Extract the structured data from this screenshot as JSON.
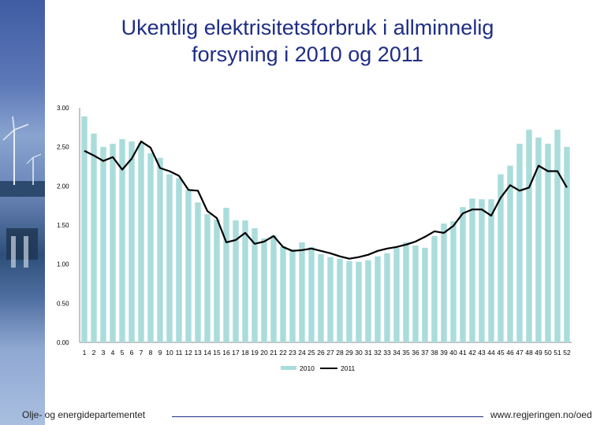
{
  "title": {
    "line1": "Ukentlig elektrisitetsforbruk i allminnelig",
    "line2": "forsyning i 2010 og 2011"
  },
  "footer": {
    "left": "Olje- og energidepartementet",
    "right": "www.regjeringen.no/oed"
  },
  "colors": {
    "bar_2010": "#aadcdc",
    "line_2011": "#000000",
    "title": "#1f2d86"
  },
  "chart_data": {
    "type": "bar",
    "overlay_type": "line",
    "ylim": [
      0,
      3.0
    ],
    "y_ticks": [
      "0.00",
      "0.50",
      "1.00",
      "1.50",
      "2.00",
      "2.50",
      "3.00"
    ],
    "grid": false,
    "legend_position": "bottom",
    "categories": [
      "1",
      "2",
      "3",
      "4",
      "5",
      "6",
      "7",
      "8",
      "9",
      "10",
      "11",
      "12",
      "13",
      "14",
      "15",
      "16",
      "17",
      "18",
      "19",
      "20",
      "21",
      "22",
      "23",
      "24",
      "25",
      "26",
      "27",
      "28",
      "29",
      "30",
      "31",
      "32",
      "33",
      "34",
      "35",
      "36",
      "37",
      "38",
      "39",
      "40",
      "41",
      "42",
      "43",
      "44",
      "45",
      "46",
      "47",
      "48",
      "49",
      "50",
      "51",
      "52"
    ],
    "series": [
      {
        "name": "2010",
        "kind": "bar",
        "values": [
          2.89,
          2.67,
          2.5,
          2.54,
          2.6,
          2.57,
          2.55,
          2.42,
          2.36,
          2.15,
          2.1,
          1.95,
          1.79,
          1.64,
          1.57,
          1.72,
          1.56,
          1.56,
          1.46,
          1.33,
          1.37,
          1.23,
          1.19,
          1.28,
          1.22,
          1.13,
          1.09,
          1.07,
          1.04,
          1.03,
          1.05,
          1.1,
          1.14,
          1.21,
          1.28,
          1.24,
          1.21,
          1.36,
          1.52,
          1.55,
          1.73,
          1.84,
          1.83,
          1.83,
          2.15,
          2.26,
          2.54,
          2.72,
          2.62,
          2.54,
          2.72,
          2.5
        ]
      },
      {
        "name": "2011",
        "kind": "line",
        "values": [
          2.45,
          2.39,
          2.32,
          2.37,
          2.21,
          2.35,
          2.57,
          2.49,
          2.23,
          2.19,
          2.13,
          1.95,
          1.94,
          1.68,
          1.59,
          1.28,
          1.31,
          1.4,
          1.26,
          1.29,
          1.36,
          1.22,
          1.17,
          1.18,
          1.2,
          1.17,
          1.14,
          1.1,
          1.07,
          1.09,
          1.12,
          1.17,
          1.2,
          1.22,
          1.25,
          1.29,
          1.35,
          1.42,
          1.4,
          1.49,
          1.65,
          1.7,
          1.7,
          1.62,
          1.85,
          2.01,
          1.94,
          1.98,
          2.26,
          2.19,
          2.19,
          1.98
        ]
      }
    ]
  }
}
